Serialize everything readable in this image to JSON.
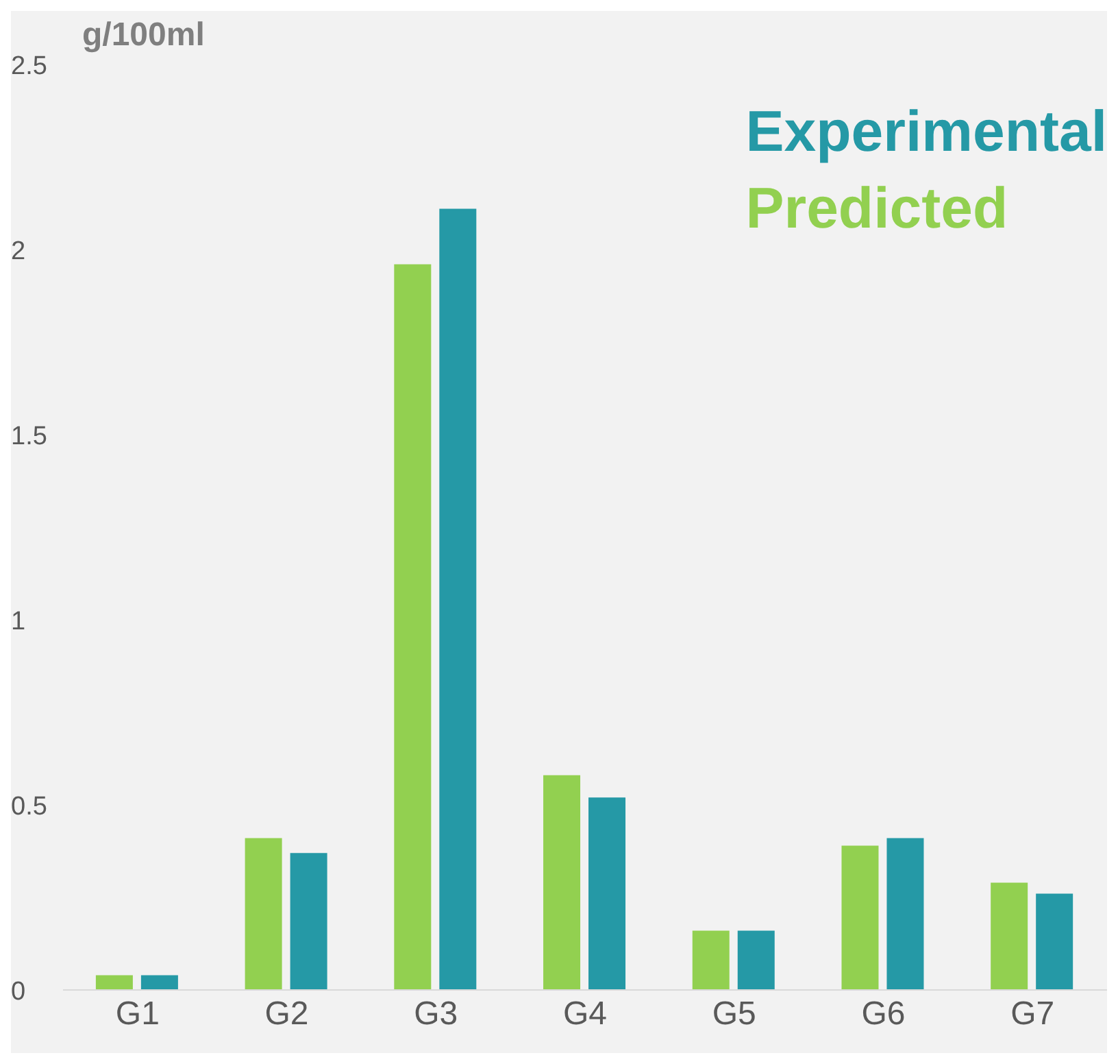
{
  "chart_data": {
    "type": "bar",
    "ylabel": "g/100ml",
    "categories": [
      "G1",
      "G2",
      "G3",
      "G4",
      "G5",
      "G6",
      "G7"
    ],
    "series": [
      {
        "name": "Predicted",
        "color": "#92d050",
        "values": [
          0.04,
          0.41,
          1.96,
          0.58,
          0.16,
          0.39,
          0.29
        ]
      },
      {
        "name": "Experimental",
        "color": "#2599a6",
        "values": [
          0.04,
          0.37,
          2.11,
          0.52,
          0.16,
          0.41,
          0.26
        ]
      }
    ],
    "ylim": [
      0,
      2.5
    ],
    "yticks": [
      0,
      0.5,
      1,
      1.5,
      2,
      2.5
    ],
    "grid": false,
    "legend": "top right"
  }
}
